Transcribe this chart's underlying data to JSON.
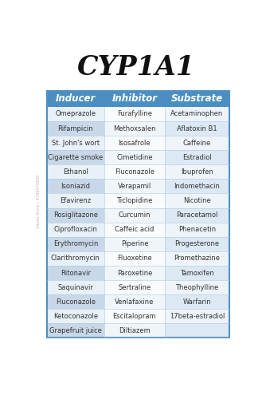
{
  "title": "CYP1A1",
  "headers": [
    "Inducer",
    "Inhibitor",
    "Substrate"
  ],
  "inducers": [
    "Omeprazole",
    "Rifampicin",
    "St. John's wort",
    "Cigarette smoke",
    "Ethanol",
    "Isoniazid",
    "Efavirenz",
    "Rosiglitazone",
    "Ciprofloxacin",
    "Erythromycin",
    "Clarithromycin",
    "Ritonavir",
    "Saquinavir",
    "Fluconazole",
    "Ketoconazole",
    "Grapefruit juice"
  ],
  "inhibitors": [
    "Furafylline",
    "Methoxsalen",
    "Isosafrole",
    "Cimetidine",
    "Fluconazole",
    "Verapamil",
    "Ticlopidine",
    "Curcumin",
    "Caffeic acid",
    "Piperine",
    "Fluoxetine",
    "Paroxetine",
    "Sertraline",
    "Venlafaxine",
    "Escitalopram",
    "Diltiazem"
  ],
  "substrates": [
    "Acetaminophen",
    "Aflatoxin B1",
    "Caffeine",
    "Estradiol",
    "Ibuprofen",
    "Indomethacin",
    "Nicotine",
    "Paracetamol",
    "Phenacetin",
    "Progesterone",
    "Promethazine",
    "Tamoxifen",
    "Theophylline",
    "Warfarin",
    "17beta-estradiol",
    ""
  ],
  "header_color": "#4a8ec2",
  "row_color_inducer_odd": "#c8d8e8",
  "row_color_inducer_even": "#e8f0f8",
  "row_color_inhibitor_odd": "#f0f5fa",
  "row_color_inhibitor_even": "#f8fbfe",
  "row_color_substrate_odd": "#dce8f4",
  "row_color_substrate_even": "#eef4fa",
  "bg_color": "#ffffff",
  "title_color": "#111111",
  "text_color": "#333333",
  "header_text_color": "#ffffff",
  "border_color": "#5090c0",
  "inner_line_color": "#b0c8dc"
}
